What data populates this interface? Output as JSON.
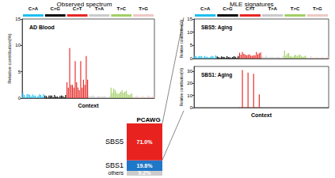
{
  "headers": [
    "Observed spectrum",
    "MLE signatures"
  ],
  "mutation_classes": [
    {
      "name": "C>A",
      "color": "#1EBFF0"
    },
    {
      "name": "C>G",
      "color": "#050708"
    },
    {
      "name": "C>T",
      "color": "#E62725"
    },
    {
      "name": "T>A",
      "color": "#CBCACB"
    },
    {
      "name": "T>C",
      "color": "#A1CF64"
    },
    {
      "name": "T>G",
      "color": "#EDC8C5"
    }
  ],
  "chart_data": [
    {
      "type": "bar",
      "title": "AD Blood",
      "x_label": "Context",
      "y_label": "Relative contribution(%)",
      "ylim": [
        0,
        15
      ],
      "yticks": [
        0,
        5,
        10,
        15
      ],
      "grid": false,
      "tick_labels": "y",
      "values": [
        1.0,
        0.6,
        0.2,
        0.7,
        0.8,
        0.6,
        0.3,
        0.7,
        0.5,
        0.5,
        0.2,
        0.4,
        0.7,
        0.6,
        0.3,
        0.8,
        0.5,
        0.4,
        0.1,
        0.5,
        0.5,
        0.5,
        0.2,
        0.6,
        0.3,
        0.3,
        0.1,
        0.4,
        0.5,
        0.4,
        0.2,
        0.6,
        3.0,
        2.0,
        9.5,
        2.5,
        2.5,
        2.0,
        7.0,
        3.0,
        2.0,
        1.5,
        7.0,
        2.0,
        3.5,
        2.5,
        8.0,
        3.5,
        0.4,
        0.3,
        0.4,
        0.5,
        0.3,
        0.2,
        0.3,
        0.4,
        0.3,
        0.3,
        0.3,
        0.4,
        0.3,
        0.2,
        0.2,
        0.4,
        2.0,
        1.0,
        1.8,
        1.5,
        1.0,
        0.8,
        0.9,
        1.2,
        1.5,
        1.0,
        1.2,
        1.4,
        0.8,
        0.6,
        0.7,
        0.9,
        0.3,
        0.2,
        0.3,
        0.5,
        0.2,
        0.2,
        0.2,
        0.4,
        0.2,
        0.1,
        0.2,
        0.5,
        0.3,
        0.2,
        0.3,
        0.6
      ]
    },
    {
      "type": "bar",
      "title": "SBS5: Aging",
      "y_label": "Relative contribution(%)",
      "ylim": [
        0,
        15
      ],
      "yticks": [
        0,
        5,
        10,
        15
      ],
      "grid": false,
      "tick_labels": "y",
      "values": [
        1.2,
        0.9,
        0.4,
        0.9,
        1.0,
        0.9,
        0.3,
        1.0,
        0.7,
        0.7,
        0.3,
        0.7,
        1.0,
        0.9,
        0.3,
        1.2,
        0.8,
        0.6,
        0.2,
        0.8,
        0.7,
        0.6,
        0.2,
        0.9,
        0.5,
        0.5,
        0.2,
        0.6,
        0.9,
        0.7,
        0.2,
        1.0,
        2.2,
        1.4,
        2.5,
        1.8,
        1.5,
        1.2,
        1.4,
        1.6,
        1.1,
        1.0,
        1.3,
        1.2,
        2.5,
        1.6,
        2.0,
        2.3,
        1.0,
        0.5,
        0.6,
        1.1,
        0.5,
        0.4,
        0.5,
        0.7,
        0.5,
        0.4,
        0.5,
        0.6,
        0.6,
        0.4,
        0.4,
        1.0,
        3.0,
        1.1,
        1.9,
        2.1,
        1.0,
        0.8,
        0.7,
        1.2,
        1.4,
        1.0,
        1.2,
        1.5,
        1.0,
        0.6,
        0.8,
        1.1,
        0.5,
        0.2,
        0.4,
        0.9,
        0.2,
        0.2,
        0.2,
        0.6,
        0.3,
        0.2,
        0.3,
        0.7,
        0.4,
        0.3,
        0.4,
        0.9
      ]
    },
    {
      "type": "bar",
      "title": "SBS1: Aging",
      "x_label": "Context",
      "y_label": "Relative contribution(%)",
      "ylim": [
        0,
        34
      ],
      "yticks": [
        0,
        10,
        20,
        30
      ],
      "grid": false,
      "tick_labels": "y",
      "values": [
        0,
        0,
        0,
        0,
        0,
        0,
        0,
        0,
        0,
        0,
        0,
        0,
        0,
        0,
        0,
        0,
        0,
        0,
        0,
        0,
        0,
        0,
        0,
        0,
        0,
        0,
        0,
        0,
        0,
        0,
        0,
        0,
        0.2,
        0.1,
        31,
        0.2,
        0.1,
        0.1,
        29,
        0.1,
        0.1,
        0.1,
        28,
        0.1,
        0.2,
        0.1,
        11,
        0.1,
        0,
        0,
        0,
        0,
        0,
        0,
        0,
        0,
        0,
        0,
        0,
        0,
        0,
        0,
        0,
        0,
        0,
        0,
        0,
        0,
        0,
        0,
        0,
        0,
        0,
        0,
        0,
        0,
        0,
        0,
        0,
        0,
        0,
        0,
        0,
        0,
        0,
        0,
        0,
        0,
        0,
        0,
        0,
        0,
        0,
        0,
        0,
        0
      ]
    },
    {
      "type": "bar",
      "title": "PCAWG",
      "stacked": true,
      "data_labels": true,
      "tick_labels": false,
      "ylim": [
        0,
        100
      ],
      "series": [
        {
          "name": "others",
          "color": "#CCCCCC",
          "values": [
            9.2
          ],
          "value_labels": [
            "9.2%"
          ]
        },
        {
          "name": "SBS1",
          "color": "#1F77C8",
          "values": [
            19.8
          ],
          "value_labels": [
            "19.8%"
          ]
        },
        {
          "name": "SBS5",
          "color": "#E8231F",
          "values": [
            71.0
          ],
          "value_labels": [
            "71.0%"
          ]
        }
      ]
    }
  ]
}
